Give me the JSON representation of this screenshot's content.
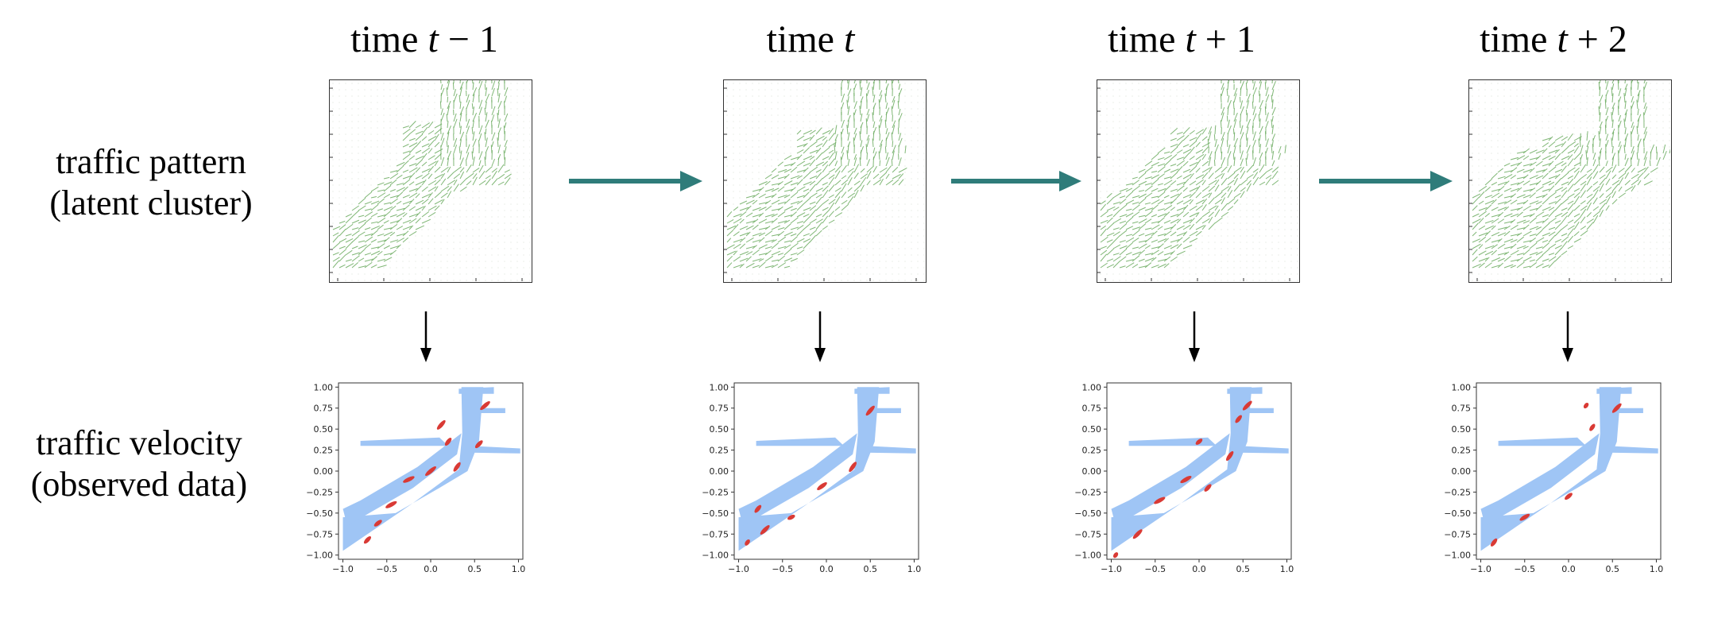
{
  "row_labels": {
    "pattern_line1": "traffic pattern",
    "pattern_line2": "(latent cluster)",
    "velocity_line1": "traffic velocity",
    "velocity_line2": "(observed data)"
  },
  "timesteps": [
    {
      "prefix": "time ",
      "var": "t",
      "suffix": " − 1"
    },
    {
      "prefix": "time ",
      "var": "t",
      "suffix": ""
    },
    {
      "prefix": "time ",
      "var": "t",
      "suffix": " + 1"
    },
    {
      "prefix": "time ",
      "var": "t",
      "suffix": " + 2"
    }
  ],
  "colors": {
    "arrow_teal": "#2f7c7a",
    "field_green": "#6aaa5e",
    "scatter_blue": "#9fc5f5",
    "highlight_red": "#d93a35"
  },
  "chart_data": {
    "type": "scatter",
    "x_ticks": [
      "−1.0",
      "−0.5",
      "0.0",
      "0.5",
      "1.0"
    ],
    "y_ticks": [
      "1.00",
      "0.75",
      "0.50",
      "0.25",
      "0.00",
      "−0.25",
      "−0.50",
      "−0.75",
      "−1.00"
    ],
    "xlim": [
      -1.05,
      1.05
    ],
    "ylim": [
      -1.05,
      1.05
    ]
  }
}
